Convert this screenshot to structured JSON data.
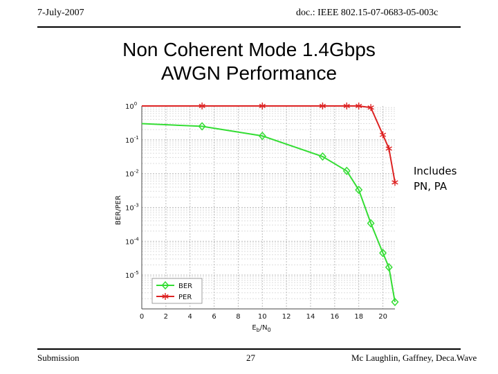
{
  "header": {
    "date": "7-July-2007",
    "doc": "doc.: IEEE 802.15-07-0683-05-003c"
  },
  "slide": {
    "title_line1": "Non Coherent Mode 1.4Gbps",
    "title_line2": "AWGN Performance",
    "note_line1": "Includes",
    "note_line2": "PN, PA"
  },
  "footer": {
    "left": "Submission",
    "page": "27",
    "right": "Mc Laughlin, Gaffney, Deca.Wave"
  },
  "chart_data": {
    "type": "line",
    "title": "",
    "xlabel": "Eb/N0",
    "ylabel": "BER/PER",
    "xlim": [
      0,
      21
    ],
    "ylim_log10": [
      -6,
      0
    ],
    "y_scale": "log",
    "grid": true,
    "x_ticks": [
      "0",
      "2",
      "4",
      "6",
      "8",
      "10",
      "12",
      "14",
      "16",
      "18",
      "20"
    ],
    "y_ticks": [
      "10^0",
      "10^-1",
      "10^-2",
      "10^-3",
      "10^-4",
      "10^-5"
    ],
    "legend_position": "bottom-left",
    "series": [
      {
        "name": "BER",
        "color": "#33dd33",
        "marker": "diamond",
        "x": [
          0,
          5,
          10,
          15,
          17,
          18,
          19,
          20,
          20.5,
          21
        ],
        "y": [
          0.3,
          0.25,
          0.13,
          0.032,
          0.012,
          0.0033,
          0.00034,
          4.5e-05,
          1.7e-05,
          1.6e-06
        ]
      },
      {
        "name": "PER",
        "color": "#dd2222",
        "marker": "star",
        "x": [
          0,
          5,
          10,
          15,
          17,
          18,
          19,
          20,
          20.5,
          21
        ],
        "y": [
          1,
          1,
          1,
          1,
          1,
          1,
          0.9,
          0.14,
          0.055,
          0.0055
        ]
      }
    ]
  }
}
